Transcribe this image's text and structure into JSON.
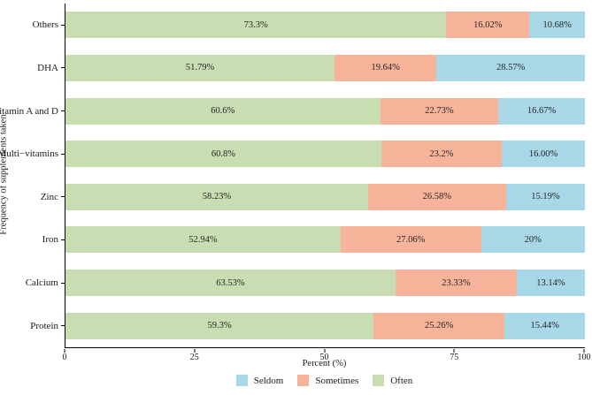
{
  "chart_data": {
    "type": "bar",
    "orientation": "horizontal_stacked",
    "title": "",
    "xlabel": "Percent (%)",
    "ylabel": "Frequency of supplements taken",
    "xlim": [
      0,
      100
    ],
    "x_ticks": [
      0,
      25,
      50,
      75,
      100
    ],
    "x_tick_labels": [
      "0",
      "25",
      "50",
      "75",
      "100"
    ],
    "grid": false,
    "legend_position": "bottom",
    "categories_top_to_bottom": [
      "Others",
      "DHA",
      "Vitamin A and D",
      "Multi−vitamins",
      "Zinc",
      "Iron",
      "Calcium",
      "Protein"
    ],
    "series": [
      {
        "name": "Often",
        "color": "#c8ddb2",
        "values": [
          73.3,
          51.79,
          60.6,
          60.8,
          58.23,
          52.94,
          63.53,
          59.3
        ],
        "labels": [
          "73.3%",
          "51.79%",
          "60.6%",
          "60.8%",
          "58.23%",
          "52.94%",
          "63.53%",
          "59.3%"
        ]
      },
      {
        "name": "Sometimes",
        "color": "#f8b49a",
        "values": [
          16.02,
          19.64,
          22.73,
          23.2,
          26.58,
          27.06,
          23.33,
          25.26
        ],
        "labels": [
          "16.02%",
          "19.64%",
          "22.73%",
          "23.2%",
          "26.58%",
          "27.06%",
          "23.33%",
          "25.26%"
        ]
      },
      {
        "name": "Seldom",
        "color": "#a8d7e8",
        "values": [
          10.68,
          28.57,
          16.67,
          16.0,
          15.19,
          20.0,
          13.14,
          15.44
        ],
        "labels": [
          "10.68%",
          "28.57%",
          "16.67%",
          "16.00%",
          "15.19%",
          "20%",
          "13.14%",
          "15.44%"
        ]
      }
    ],
    "legend": [
      {
        "label": "Seldom",
        "color": "#a8d7e8"
      },
      {
        "label": "Sometimes",
        "color": "#f8b49a"
      },
      {
        "label": "Often",
        "color": "#c8ddb2"
      }
    ]
  },
  "axes": {
    "x_title": "Percent (%)",
    "y_title": "Frequency of supplements taken"
  },
  "colors": {
    "axis_line": "#000000",
    "text": "#1a1a1a",
    "background": "#ffffff"
  }
}
